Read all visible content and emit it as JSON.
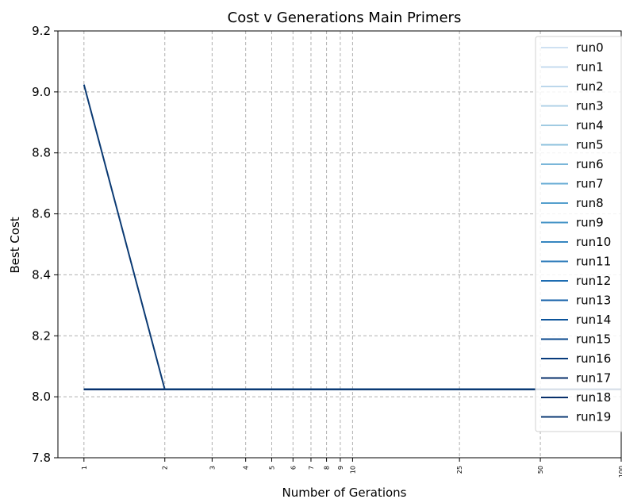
{
  "chart_data": {
    "type": "line",
    "title": "Cost v Generations Main Primers",
    "xlabel": "Number of Gerations",
    "ylabel": "Best Cost",
    "xscale": "log",
    "xlim": [
      0.8,
      100
    ],
    "ylim": [
      7.8,
      9.2
    ],
    "xticks": [
      1,
      2,
      3,
      4,
      5,
      6,
      7,
      8,
      9,
      10,
      25,
      50,
      100
    ],
    "xtick_labels": [
      "1",
      "2",
      "3",
      "4",
      "5",
      "6",
      "7",
      "8",
      "9",
      "10",
      "25",
      "50",
      "100"
    ],
    "yticks": [
      7.8,
      8.0,
      8.2,
      8.4,
      8.6,
      8.8,
      9.0,
      9.2
    ],
    "ytick_labels": [
      "7.8",
      "8.0",
      "8.2",
      "8.4",
      "8.6",
      "8.8",
      "9.0",
      "9.2"
    ],
    "grid": true,
    "legend_position": "right",
    "series": [
      {
        "name": "run0",
        "color": "#cfe1f2",
        "x": [
          1,
          2,
          100
        ],
        "y": [
          8.024,
          8.024,
          8.024
        ]
      },
      {
        "name": "run1",
        "color": "#c6dbef",
        "x": [
          1,
          2,
          100
        ],
        "y": [
          8.024,
          8.024,
          8.024
        ]
      },
      {
        "name": "run2",
        "color": "#bcd7eb",
        "x": [
          1,
          2,
          100
        ],
        "y": [
          8.024,
          8.024,
          8.024
        ]
      },
      {
        "name": "run3",
        "color": "#afd1e7",
        "x": [
          1,
          2,
          100
        ],
        "y": [
          8.024,
          8.024,
          8.024
        ]
      },
      {
        "name": "run4",
        "color": "#a0cbe2",
        "x": [
          1,
          2,
          100
        ],
        "y": [
          8.024,
          8.024,
          8.024
        ]
      },
      {
        "name": "run5",
        "color": "#8dc1dd",
        "x": [
          1,
          2,
          100
        ],
        "y": [
          8.024,
          8.024,
          8.024
        ]
      },
      {
        "name": "run6",
        "color": "#7ab6d9",
        "x": [
          1,
          2,
          100
        ],
        "y": [
          8.024,
          8.024,
          8.024
        ]
      },
      {
        "name": "run7",
        "color": "#66abd4",
        "x": [
          1,
          2,
          100
        ],
        "y": [
          8.024,
          8.024,
          8.024
        ]
      },
      {
        "name": "run8",
        "color": "#549fcd",
        "x": [
          1,
          2,
          100
        ],
        "y": [
          8.024,
          8.024,
          8.024
        ]
      },
      {
        "name": "run9",
        "color": "#4493c6",
        "x": [
          1,
          2,
          100
        ],
        "y": [
          8.024,
          8.024,
          8.024
        ]
      },
      {
        "name": "run10",
        "color": "#3686c0",
        "x": [
          1,
          2,
          100
        ],
        "y": [
          8.024,
          8.024,
          8.024
        ]
      },
      {
        "name": "run11",
        "color": "#2979b9",
        "x": [
          1,
          2,
          100
        ],
        "y": [
          8.024,
          8.024,
          8.024
        ]
      },
      {
        "name": "run12",
        "color": "#1d6cb1",
        "x": [
          1,
          2,
          100
        ],
        "y": [
          8.024,
          8.024,
          8.024
        ]
      },
      {
        "name": "run13",
        "color": "#1460a8",
        "x": [
          1,
          2,
          100
        ],
        "y": [
          8.024,
          8.024,
          8.024
        ]
      },
      {
        "name": "run14",
        "color": "#0b539a",
        "x": [
          1,
          2,
          100
        ],
        "y": [
          8.024,
          8.024,
          8.024
        ]
      },
      {
        "name": "run15",
        "color": "#08478d",
        "x": [
          1,
          2,
          100
        ],
        "y": [
          8.024,
          8.024,
          8.024
        ]
      },
      {
        "name": "run16",
        "color": "#083b7c",
        "x": [
          1,
          2,
          100
        ],
        "y": [
          8.024,
          8.024,
          8.024
        ]
      },
      {
        "name": "run17",
        "color": "#08306b",
        "x": [
          1,
          2,
          100
        ],
        "y": [
          8.024,
          8.024,
          8.024
        ]
      },
      {
        "name": "run18",
        "color": "#08306b",
        "x": [
          1,
          2,
          100
        ],
        "y": [
          8.024,
          8.024,
          8.024
        ]
      },
      {
        "name": "run19",
        "color": "#0b3a73",
        "x": [
          1,
          2,
          100
        ],
        "y": [
          9.024,
          8.024,
          8.024
        ]
      }
    ]
  }
}
